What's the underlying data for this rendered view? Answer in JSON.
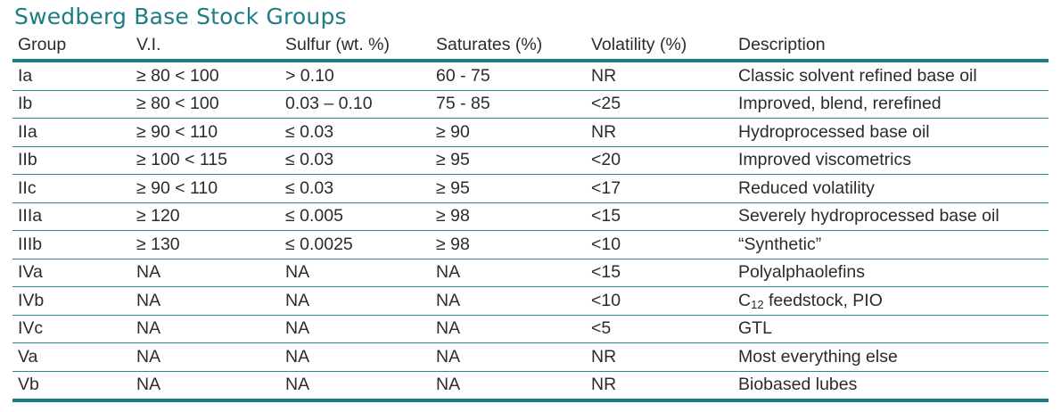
{
  "title": "Swedberg Base Stock Groups",
  "headers": [
    "Group",
    "V.I.",
    "Sulfur (wt. %)",
    "Saturates (%)",
    "Volatility (%)",
    "Description"
  ],
  "rows": [
    [
      "Ia",
      "≥ 80 < 100",
      "> 0.10",
      "60 - 75",
      "NR",
      "Classic solvent refined base oil"
    ],
    [
      "Ib",
      "≥ 80 < 100",
      "0.03 – 0.10",
      "75 - 85",
      "<25",
      "Improved, blend, rerefined"
    ],
    [
      "IIa",
      "≥ 90 < 110",
      "≤ 0.03",
      "≥ 90",
      "NR",
      "Hydroprocessed base oil"
    ],
    [
      "IIb",
      "≥ 100 < 115",
      "≤ 0.03",
      "≥ 95",
      "<20",
      "Improved viscometrics"
    ],
    [
      "IIc",
      "≥ 90 < 110",
      "≤ 0.03",
      "≥ 95",
      "<17",
      "Reduced volatility"
    ],
    [
      "IIIa",
      "≥ 120",
      "≤ 0.005",
      "≥ 98",
      "<15",
      "Severely hydroprocessed base oil"
    ],
    [
      "IIIb",
      "≥ 130",
      "≤ 0.0025",
      "≥ 98",
      "<10",
      "“Synthetic”"
    ],
    [
      "IVa",
      "NA",
      "NA",
      "NA",
      "<15",
      "Polyalphaolefins"
    ],
    [
      "IVb",
      "NA",
      "NA",
      "NA",
      "<10",
      {
        "prefix": "C",
        "sub": "12",
        "suffix": " feedstock, PIO"
      }
    ],
    [
      "IVc",
      "NA",
      "NA",
      "NA",
      "<5",
      "GTL"
    ],
    [
      "Va",
      "NA",
      "NA",
      "NA",
      "NR",
      "Most everything else"
    ],
    [
      "Vb",
      "NA",
      "NA",
      "NA",
      "NR",
      "Biobased lubes"
    ]
  ],
  "colors": {
    "accent": "#1d7c84",
    "text": "#2b2b2b"
  }
}
